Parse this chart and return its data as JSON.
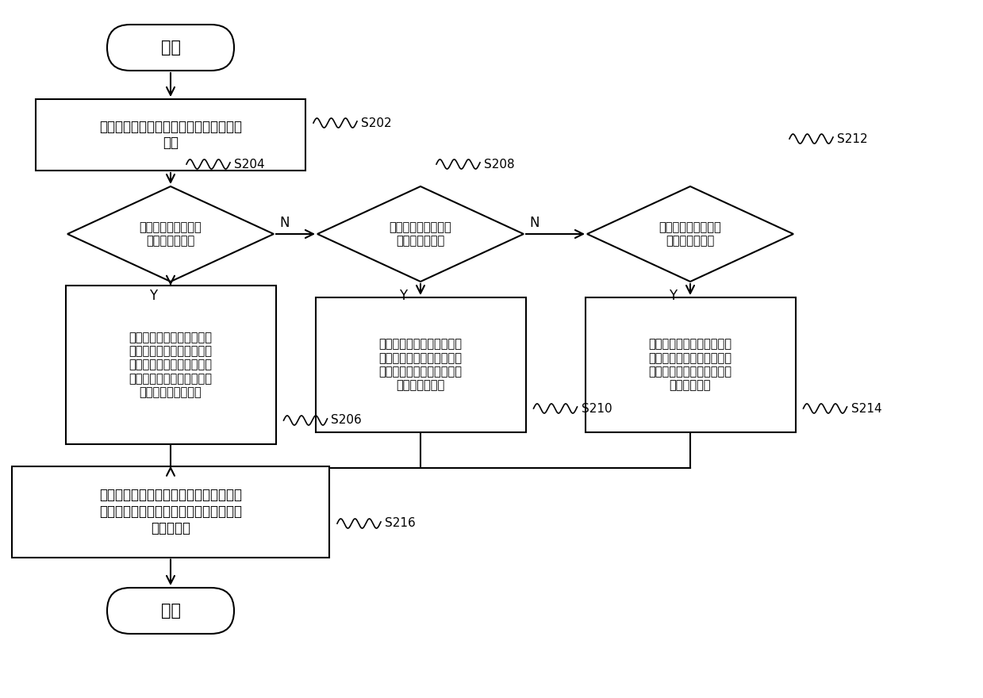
{
  "bg_color": "#ffffff",
  "line_color": "#000000",
  "text_color": "#000000",
  "start_text": "开始",
  "end_text": "结束",
  "rect1_text": "接收制冷开机指令后，获取新风机的回风\n温度",
  "diamond1_text": "判断回风温度是否处\n于第一温度区间",
  "diamond2_text": "判断回风温度是否处\n于第二温度区间",
  "diamond3_text": "判断回风温度是否处\n于第三温度区间",
  "rect2_text": "计算多联机的多个室内机的\n换热器出口处的制冷剂平均\n温度与新风机的室内换热器\n入口处的制冷剂温度的差值\n，差值为当前过热度",
  "rect3_text": "计算新风机的室内换热器的\n出口处的制冷剂温度与入口\n处的制冷剂温度的差值，差\n值为当前过热度",
  "rect4_text": "计算新风机的室内换热器的\n出口处温度与新风机的回风\n温度的修正值的差值，差值\n为当前过热度",
  "rect5_text": "根据当前过热度与目标过热度的差值计算\n出阀体的调整开度，并根据调整开度对阀\n体进行控制",
  "labels": [
    "S202",
    "S204",
    "S206",
    "S208",
    "S210",
    "S212",
    "S214",
    "S216"
  ],
  "yn_labels": [
    "Y",
    "N"
  ]
}
